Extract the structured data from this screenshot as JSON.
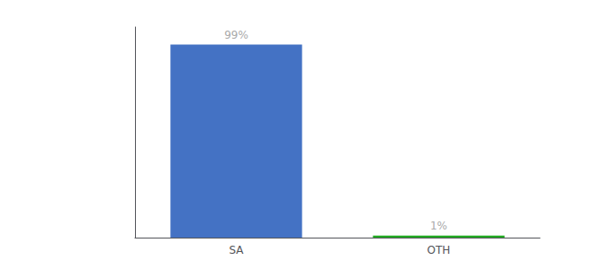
{
  "chart_data": {
    "type": "bar",
    "categories": [
      "SA",
      "OTH"
    ],
    "values": [
      99,
      1
    ],
    "value_labels": [
      "99%",
      "1%"
    ],
    "colors": [
      "#4472c4",
      "#22aa22"
    ],
    "ylim": [
      0,
      108
    ],
    "data_labels": true,
    "tick_labels": "x",
    "grid": false
  }
}
